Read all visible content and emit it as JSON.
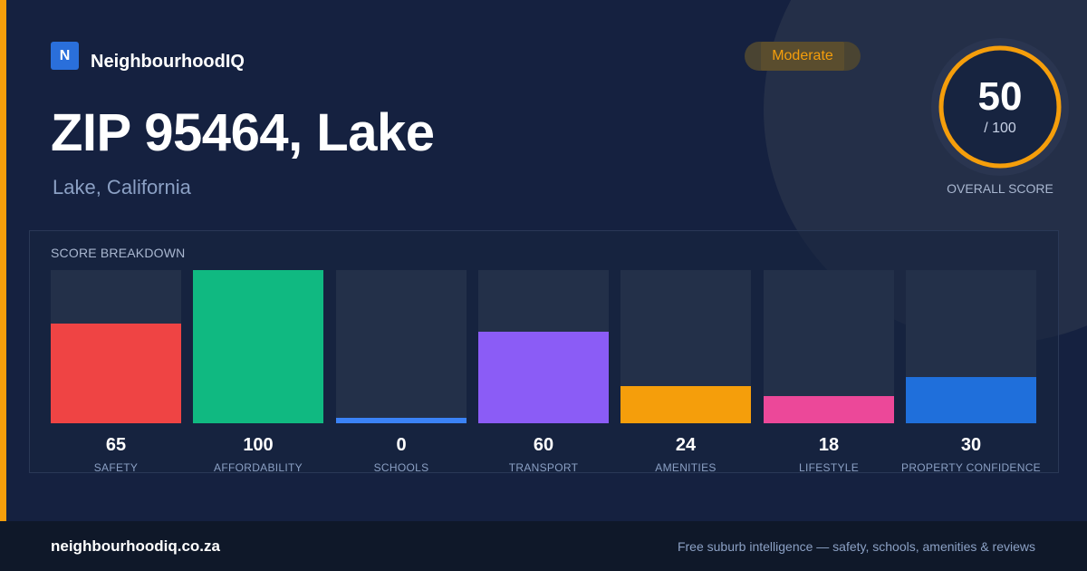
{
  "brand": {
    "logo_letter": "N",
    "name": "NeighbourhoodIQ"
  },
  "header": {
    "title": "ZIP 95464, Lake",
    "subtitle": "Lake, California"
  },
  "badge": {
    "label": "Moderate",
    "color": "#f59e0b"
  },
  "overall": {
    "score": "50",
    "denominator": "/ 100",
    "label": "OVERALL SCORE",
    "fraction": 0.5,
    "ring_color": "#f59e0b"
  },
  "breakdown_title": "SCORE BREAKDOWN",
  "chart_data": {
    "type": "bar",
    "title": "SCORE BREAKDOWN",
    "ylim": [
      0,
      100
    ],
    "categories": [
      "SAFETY",
      "AFFORDABILITY",
      "SCHOOLS",
      "TRANSPORT",
      "AMENITIES",
      "LIFESTYLE",
      "PROPERTY CONFIDENCE"
    ],
    "values": [
      65,
      100,
      0,
      60,
      24,
      18,
      30
    ],
    "colors": [
      "#ef4444",
      "#10b981",
      "#3b82f6",
      "#8b5cf6",
      "#f59e0b",
      "#ec4899",
      "#1f6fdb"
    ]
  },
  "footer": {
    "site": "neighbourhoodiq.co.za",
    "tagline": "Free suburb intelligence — safety, schools, amenities & reviews"
  }
}
